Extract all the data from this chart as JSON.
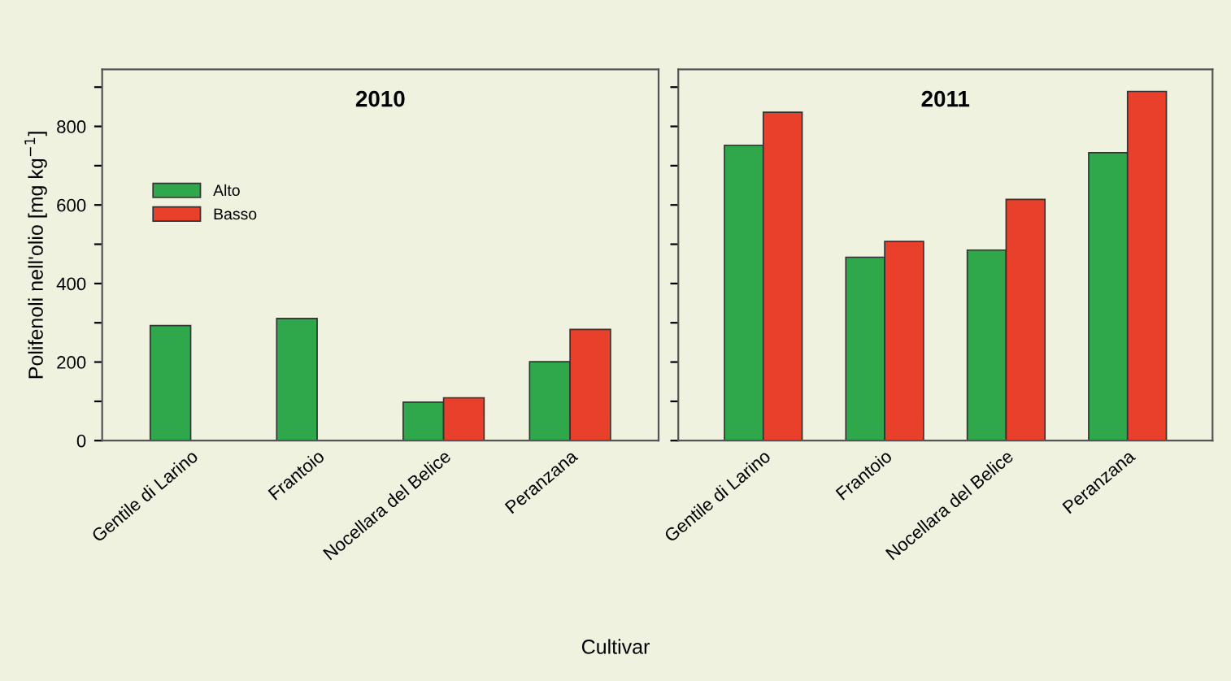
{
  "chart_data": [
    {
      "type": "bar",
      "title": "2010",
      "ylabel": "Polifenoli nell'olio [mg kg$^{−1}$]",
      "xlabel": "Cultivar",
      "categories": [
        "Gentile di Larino",
        "Frantoio",
        "Nocellara del Belice",
        "Peranzana"
      ],
      "series": [
        {
          "name": "Alto",
          "color": "#2ea84a",
          "values": [
            293,
            311,
            98,
            201
          ]
        },
        {
          "name": "Basso",
          "color": "#e8402a",
          "values": [
            null,
            null,
            109,
            283
          ]
        }
      ],
      "ylim": [
        0,
        945
      ],
      "yticks": [
        0,
        {
          "value": 100,
          "label": null
        },
        200,
        {
          "value": 300,
          "label": null
        },
        400,
        {
          "value": 500,
          "label": null
        },
        600,
        {
          "value": 700,
          "label": null
        },
        800,
        {
          "value": 900,
          "label": null
        }
      ],
      "legend": "top left",
      "grid": false
    },
    {
      "type": "bar",
      "title": "2011",
      "categories": [
        "Gentile di Larino",
        "Frantoio",
        "Nocellara del Belice",
        "Peranzana"
      ],
      "series": [
        {
          "color": "#2ea84a",
          "values": [
            752,
            467,
            485,
            733
          ]
        },
        {
          "color": "#e8402a",
          "values": [
            836,
            507,
            614,
            889
          ]
        }
      ],
      "ylim": [
        0,
        945
      ],
      "yticks": [
        0,
        {
          "value": 100,
          "label": null
        },
        200,
        {
          "value": 300,
          "label": null
        },
        400,
        {
          "value": 500,
          "label": null
        },
        600,
        {
          "value": 700,
          "label": null
        },
        800,
        {
          "value": 900,
          "label": null
        }
      ],
      "tick_labels": "x",
      "grid": false
    }
  ]
}
